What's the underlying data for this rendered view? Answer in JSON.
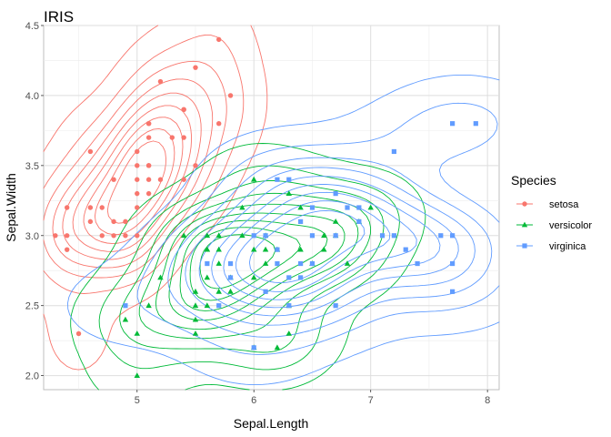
{
  "chart_data": {
    "type": "scatter",
    "title": "IRIS",
    "xlabel": "Sepal.Length",
    "ylabel": "Sepal.Width",
    "xlim": [
      4.2,
      8.1
    ],
    "ylim": [
      1.9,
      4.5
    ],
    "x_ticks": [
      "5",
      "6",
      "7",
      "8"
    ],
    "y_ticks": [
      "2.0",
      "2.5",
      "3.0",
      "3.5",
      "4.0",
      "4.5"
    ],
    "grid": true,
    "legend": {
      "title": "Species",
      "placement": "right"
    },
    "overlay": "2D density contour lines per series",
    "series": [
      {
        "name": "setosa",
        "color": "#F8766D",
        "marker": "circle",
        "x": [
          4.3,
          4.4,
          4.4,
          4.4,
          4.5,
          4.6,
          4.6,
          4.6,
          4.7,
          4.7,
          4.8,
          4.8,
          4.8,
          4.9,
          4.9,
          5.0,
          5.0,
          5.0,
          5.0,
          5.0,
          5.0,
          5.1,
          5.1,
          5.1,
          5.1,
          5.1,
          5.1,
          5.1,
          5.2,
          5.2,
          5.3,
          5.4,
          5.4,
          5.4,
          5.4,
          5.5,
          5.5,
          5.7,
          5.7,
          5.8
        ],
        "y": [
          3.0,
          2.9,
          3.0,
          3.2,
          2.3,
          3.1,
          3.2,
          3.6,
          3.2,
          3.0,
          3.0,
          3.1,
          3.4,
          3.0,
          3.1,
          3.0,
          3.2,
          3.3,
          3.4,
          3.5,
          3.6,
          3.3,
          3.4,
          3.5,
          3.7,
          3.8,
          3.8,
          3.5,
          3.4,
          4.1,
          3.7,
          3.4,
          3.7,
          3.9,
          3.9,
          3.5,
          4.2,
          3.8,
          4.4,
          4.0
        ]
      },
      {
        "name": "versicolor",
        "color": "#00BA38",
        "marker": "triangle",
        "x": [
          4.9,
          5.0,
          5.0,
          5.1,
          5.2,
          5.5,
          5.5,
          5.5,
          5.5,
          5.6,
          5.6,
          5.6,
          5.6,
          5.7,
          5.7,
          5.7,
          5.7,
          5.8,
          5.8,
          5.9,
          5.9,
          6.0,
          6.0,
          6.0,
          6.0,
          6.1,
          6.1,
          6.2,
          6.2,
          6.3,
          6.3,
          6.3,
          6.4,
          6.4,
          6.5,
          6.6,
          6.6,
          6.7,
          6.7,
          6.8,
          6.9,
          7.0,
          5.4,
          5.6,
          6.1
        ],
        "y": [
          2.4,
          2.0,
          2.3,
          2.5,
          2.7,
          2.3,
          2.4,
          2.5,
          2.6,
          2.5,
          2.7,
          2.9,
          3.0,
          2.6,
          2.8,
          2.9,
          3.0,
          2.7,
          2.6,
          3.0,
          3.2,
          2.2,
          2.7,
          2.9,
          3.4,
          2.8,
          3.0,
          2.9,
          2.2,
          2.3,
          2.5,
          3.3,
          2.9,
          3.2,
          2.8,
          2.9,
          3.0,
          3.0,
          3.1,
          2.8,
          3.1,
          3.2,
          3.0,
          2.9,
          2.9
        ]
      },
      {
        "name": "virginica",
        "color": "#619CFF",
        "marker": "square",
        "x": [
          4.9,
          5.6,
          5.7,
          5.8,
          5.8,
          6.0,
          6.0,
          6.1,
          6.1,
          6.2,
          6.2,
          6.3,
          6.3,
          6.3,
          6.4,
          6.4,
          6.4,
          6.5,
          6.5,
          6.5,
          6.7,
          6.7,
          6.7,
          6.8,
          6.9,
          7.1,
          7.2,
          7.2,
          7.3,
          7.4,
          7.6,
          7.7,
          7.7,
          7.7,
          7.7,
          7.9,
          6.2,
          6.9
        ],
        "y": [
          2.5,
          2.8,
          2.5,
          2.7,
          2.8,
          2.2,
          3.0,
          2.6,
          3.0,
          2.8,
          3.4,
          2.5,
          2.7,
          3.4,
          2.7,
          2.8,
          3.1,
          3.0,
          3.2,
          2.8,
          2.5,
          3.0,
          3.3,
          3.2,
          3.1,
          3.0,
          3.0,
          3.6,
          2.9,
          2.8,
          3.0,
          2.6,
          2.8,
          3.0,
          3.8,
          3.8,
          2.9,
          3.2
        ]
      }
    ]
  }
}
